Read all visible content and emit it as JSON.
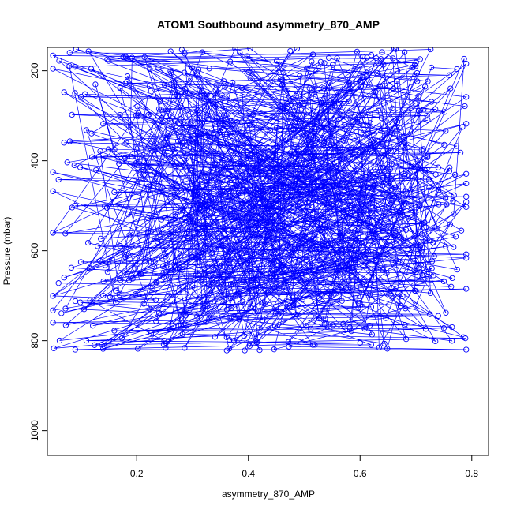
{
  "chart_data": {
    "type": "scatter",
    "title": "ATOM1 Southbound asymmetry_870_AMP",
    "xlabel": "asymmetry_870_AMP",
    "ylabel": "Pressure (mbar)",
    "xlim": [
      0.04,
      0.83
    ],
    "ylim": [
      1055,
      148
    ],
    "y_inverted": true,
    "x_ticks": [
      0.2,
      0.4,
      0.6,
      0.8
    ],
    "y_ticks": [
      200,
      400,
      600,
      800,
      1000
    ],
    "x_tick_labels": [
      "0.2",
      "0.4",
      "0.6",
      "0.8"
    ],
    "y_tick_labels": [
      "200",
      "400",
      "600",
      "800",
      "1000"
    ],
    "series_color": "#0000ff",
    "marker": "open-circle",
    "connected": true,
    "grid": false,
    "legend": "none",
    "points_estimated": [
      {
        "x": 0.08,
        "y": 160
      },
      {
        "x": 0.62,
        "y": 165
      },
      {
        "x": 0.15,
        "y": 178
      },
      {
        "x": 0.7,
        "y": 182
      },
      {
        "x": 0.33,
        "y": 195
      },
      {
        "x": 0.76,
        "y": 210
      },
      {
        "x": 0.18,
        "y": 228
      },
      {
        "x": 0.66,
        "y": 240
      },
      {
        "x": 0.1,
        "y": 258
      },
      {
        "x": 0.58,
        "y": 268
      },
      {
        "x": 0.24,
        "y": 285
      },
      {
        "x": 0.72,
        "y": 300
      },
      {
        "x": 0.14,
        "y": 318
      },
      {
        "x": 0.55,
        "y": 330
      },
      {
        "x": 0.07,
        "y": 360
      },
      {
        "x": 0.68,
        "y": 372
      },
      {
        "x": 0.12,
        "y": 392
      },
      {
        "x": 0.78,
        "y": 382
      },
      {
        "x": 0.2,
        "y": 410
      },
      {
        "x": 0.74,
        "y": 415
      },
      {
        "x": 0.06,
        "y": 442
      },
      {
        "x": 0.64,
        "y": 455
      },
      {
        "x": 0.16,
        "y": 470
      },
      {
        "x": 0.79,
        "y": 480
      },
      {
        "x": 0.09,
        "y": 500
      },
      {
        "x": 0.6,
        "y": 510
      },
      {
        "x": 0.22,
        "y": 528
      },
      {
        "x": 0.71,
        "y": 540
      },
      {
        "x": 0.05,
        "y": 560
      },
      {
        "x": 0.66,
        "y": 575
      },
      {
        "x": 0.13,
        "y": 590
      },
      {
        "x": 0.79,
        "y": 608
      },
      {
        "x": 0.1,
        "y": 625
      },
      {
        "x": 0.58,
        "y": 640
      },
      {
        "x": 0.19,
        "y": 655
      },
      {
        "x": 0.75,
        "y": 668
      },
      {
        "x": 0.06,
        "y": 672
      },
      {
        "x": 0.7,
        "y": 690
      },
      {
        "x": 0.14,
        "y": 700
      },
      {
        "x": 0.79,
        "y": 685
      },
      {
        "x": 0.09,
        "y": 712
      },
      {
        "x": 0.62,
        "y": 725
      },
      {
        "x": 0.24,
        "y": 738
      },
      {
        "x": 0.74,
        "y": 745
      },
      {
        "x": 0.05,
        "y": 760
      },
      {
        "x": 0.68,
        "y": 765
      },
      {
        "x": 0.16,
        "y": 778
      },
      {
        "x": 0.75,
        "y": 772
      },
      {
        "x": 0.11,
        "y": 800
      },
      {
        "x": 0.6,
        "y": 805
      },
      {
        "x": 0.09,
        "y": 820
      },
      {
        "x": 0.79,
        "y": 820
      }
    ]
  }
}
